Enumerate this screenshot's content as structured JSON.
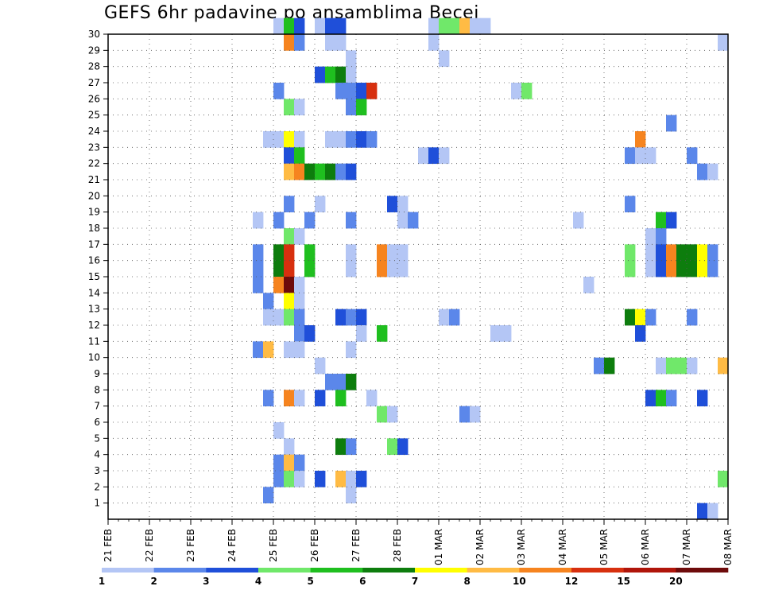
{
  "chart_data": {
    "type": "heatmap",
    "title": "GEFS 6hr padavine po ansamblima Becej",
    "xlabel": "",
    "ylabel": "",
    "x_axis": {
      "start_day_index": 0,
      "end_day_index": 15,
      "step": "6h",
      "tick_labels": [
        "21 FEB",
        "22 FEB",
        "23 FEB",
        "24 FEB",
        "25 FEB",
        "26 FEB",
        "27 FEB",
        "28 FEB",
        "01 MAR",
        "02 MAR",
        "03 MAR",
        "04 MAR",
        "05 MAR",
        "06 MAR",
        "07 MAR",
        "08 MAR"
      ]
    },
    "y_axis": {
      "ylim": [
        0,
        30
      ],
      "tick_labels": [
        "1",
        "2",
        "3",
        "4",
        "5",
        "6",
        "7",
        "8",
        "9",
        "10",
        "11",
        "12",
        "13",
        "14",
        "15",
        "16",
        "17",
        "18",
        "19",
        "20",
        "21",
        "22",
        "23",
        "24",
        "25",
        "26",
        "27",
        "28",
        "29",
        "30"
      ]
    },
    "colorbar": {
      "levels": [
        "1",
        "2",
        "3",
        "4",
        "5",
        "6",
        "7",
        "8",
        "10",
        "12",
        "15",
        "20"
      ],
      "colors": [
        "#b4c6f5",
        "#5b87ea",
        "#1f4fd9",
        "#70e86a",
        "#1fbf1f",
        "#0d7d0d",
        "#ffff00",
        "#ffbb44",
        "#f6841f",
        "#d7300f",
        "#b0150a",
        "#6e0b0b"
      ]
    },
    "grid": true,
    "cells": [
      [
        30,
        16,
        0
      ],
      [
        30,
        17,
        4
      ],
      [
        30,
        18,
        2
      ],
      [
        30,
        20,
        0
      ],
      [
        30,
        21,
        2
      ],
      [
        30,
        22,
        2
      ],
      [
        30,
        31,
        0
      ],
      [
        30,
        32,
        3
      ],
      [
        30,
        33,
        3
      ],
      [
        30,
        34,
        7
      ],
      [
        30,
        35,
        0
      ],
      [
        30,
        36,
        0
      ],
      [
        29,
        17,
        8
      ],
      [
        29,
        18,
        1
      ],
      [
        29,
        21,
        0
      ],
      [
        29,
        22,
        0
      ],
      [
        29,
        31,
        0
      ],
      [
        29,
        59,
        0
      ],
      [
        28,
        23,
        0
      ],
      [
        28,
        32,
        0
      ],
      [
        27,
        20,
        2
      ],
      [
        27,
        21,
        4
      ],
      [
        27,
        22,
        5
      ],
      [
        27,
        23,
        0
      ],
      [
        26,
        16,
        1
      ],
      [
        26,
        22,
        1
      ],
      [
        26,
        23,
        1
      ],
      [
        26,
        24,
        2
      ],
      [
        26,
        25,
        9
      ],
      [
        26,
        39,
        0
      ],
      [
        26,
        40,
        3
      ],
      [
        25,
        17,
        3
      ],
      [
        25,
        18,
        0
      ],
      [
        25,
        23,
        1
      ],
      [
        25,
        24,
        4
      ],
      [
        24,
        54,
        1
      ],
      [
        23,
        15,
        0
      ],
      [
        23,
        16,
        0
      ],
      [
        23,
        17,
        6
      ],
      [
        23,
        18,
        0
      ],
      [
        23,
        21,
        0
      ],
      [
        23,
        22,
        0
      ],
      [
        23,
        23,
        1
      ],
      [
        23,
        24,
        2
      ],
      [
        23,
        25,
        1
      ],
      [
        23,
        51,
        8
      ],
      [
        22,
        17,
        2
      ],
      [
        22,
        18,
        4
      ],
      [
        22,
        30,
        0
      ],
      [
        22,
        31,
        2
      ],
      [
        22,
        32,
        0
      ],
      [
        22,
        50,
        1
      ],
      [
        22,
        51,
        0
      ],
      [
        22,
        52,
        0
      ],
      [
        22,
        56,
        1
      ],
      [
        21,
        17,
        7
      ],
      [
        21,
        18,
        8
      ],
      [
        21,
        19,
        5
      ],
      [
        21,
        20,
        4
      ],
      [
        21,
        21,
        5
      ],
      [
        21,
        22,
        1
      ],
      [
        21,
        23,
        2
      ],
      [
        21,
        57,
        1
      ],
      [
        21,
        58,
        0
      ],
      [
        19,
        17,
        1
      ],
      [
        19,
        20,
        0
      ],
      [
        19,
        27,
        2
      ],
      [
        19,
        28,
        0
      ],
      [
        19,
        50,
        1
      ],
      [
        18,
        14,
        0
      ],
      [
        18,
        16,
        1
      ],
      [
        18,
        19,
        1
      ],
      [
        18,
        23,
        1
      ],
      [
        18,
        28,
        0
      ],
      [
        18,
        29,
        1
      ],
      [
        18,
        45,
        0
      ],
      [
        18,
        53,
        4
      ],
      [
        18,
        54,
        2
      ],
      [
        17,
        17,
        3
      ],
      [
        17,
        18,
        0
      ],
      [
        17,
        52,
        0
      ],
      [
        17,
        53,
        1
      ],
      [
        16,
        14,
        1
      ],
      [
        16,
        16,
        5
      ],
      [
        16,
        17,
        9
      ],
      [
        16,
        19,
        4
      ],
      [
        16,
        23,
        0
      ],
      [
        16,
        26,
        8
      ],
      [
        16,
        27,
        0
      ],
      [
        16,
        28,
        0
      ],
      [
        16,
        50,
        3
      ],
      [
        16,
        52,
        0
      ],
      [
        16,
        53,
        2
      ],
      [
        16,
        54,
        8
      ],
      [
        16,
        55,
        5
      ],
      [
        16,
        56,
        5
      ],
      [
        16,
        57,
        6
      ],
      [
        16,
        58,
        1
      ],
      [
        15,
        14,
        1
      ],
      [
        15,
        16,
        5
      ],
      [
        15,
        17,
        9
      ],
      [
        15,
        19,
        4
      ],
      [
        15,
        23,
        0
      ],
      [
        15,
        26,
        8
      ],
      [
        15,
        27,
        0
      ],
      [
        15,
        28,
        0
      ],
      [
        15,
        50,
        3
      ],
      [
        15,
        52,
        0
      ],
      [
        15,
        53,
        2
      ],
      [
        15,
        54,
        8
      ],
      [
        15,
        55,
        5
      ],
      [
        15,
        56,
        5
      ],
      [
        15,
        57,
        6
      ],
      [
        15,
        58,
        1
      ],
      [
        14,
        14,
        1
      ],
      [
        14,
        16,
        8
      ],
      [
        14,
        17,
        11
      ],
      [
        14,
        18,
        0
      ],
      [
        14,
        46,
        0
      ],
      [
        13,
        15,
        1
      ],
      [
        13,
        17,
        6
      ],
      [
        13,
        18,
        0
      ],
      [
        12,
        15,
        0
      ],
      [
        12,
        16,
        0
      ],
      [
        12,
        17,
        3
      ],
      [
        12,
        18,
        1
      ],
      [
        12,
        22,
        2
      ],
      [
        12,
        23,
        1
      ],
      [
        12,
        24,
        2
      ],
      [
        12,
        32,
        0
      ],
      [
        12,
        33,
        1
      ],
      [
        12,
        50,
        5
      ],
      [
        12,
        51,
        6
      ],
      [
        12,
        52,
        1
      ],
      [
        12,
        56,
        1
      ],
      [
        11,
        18,
        1
      ],
      [
        11,
        19,
        2
      ],
      [
        11,
        24,
        0
      ],
      [
        11,
        26,
        4
      ],
      [
        11,
        37,
        0
      ],
      [
        11,
        38,
        0
      ],
      [
        11,
        51,
        2
      ],
      [
        10,
        14,
        1
      ],
      [
        10,
        15,
        7
      ],
      [
        10,
        17,
        0
      ],
      [
        10,
        18,
        0
      ],
      [
        10,
        23,
        0
      ],
      [
        9,
        20,
        0
      ],
      [
        9,
        47,
        1
      ],
      [
        9,
        48,
        5
      ],
      [
        9,
        53,
        0
      ],
      [
        9,
        54,
        3
      ],
      [
        9,
        55,
        3
      ],
      [
        9,
        56,
        0
      ],
      [
        9,
        59,
        7
      ],
      [
        8,
        21,
        1
      ],
      [
        8,
        22,
        1
      ],
      [
        8,
        23,
        5
      ],
      [
        7,
        15,
        1
      ],
      [
        7,
        17,
        8
      ],
      [
        7,
        18,
        0
      ],
      [
        7,
        20,
        2
      ],
      [
        7,
        22,
        4
      ],
      [
        7,
        25,
        0
      ],
      [
        7,
        52,
        2
      ],
      [
        7,
        53,
        4
      ],
      [
        7,
        54,
        1
      ],
      [
        7,
        57,
        2
      ],
      [
        6,
        26,
        3
      ],
      [
        6,
        27,
        0
      ],
      [
        6,
        34,
        1
      ],
      [
        6,
        35,
        0
      ],
      [
        5,
        16,
        0
      ],
      [
        4,
        17,
        0
      ],
      [
        4,
        22,
        5
      ],
      [
        4,
        23,
        1
      ],
      [
        4,
        27,
        3
      ],
      [
        4,
        28,
        2
      ],
      [
        3,
        16,
        1
      ],
      [
        3,
        17,
        7
      ],
      [
        3,
        18,
        1
      ],
      [
        2,
        16,
        1
      ],
      [
        2,
        17,
        3
      ],
      [
        2,
        18,
        0
      ],
      [
        2,
        20,
        2
      ],
      [
        2,
        22,
        7
      ],
      [
        2,
        23,
        0
      ],
      [
        2,
        24,
        2
      ],
      [
        2,
        59,
        3
      ],
      [
        1,
        15,
        1
      ],
      [
        1,
        23,
        0
      ],
      [
        0,
        57,
        2
      ],
      [
        0,
        58,
        0
      ]
    ]
  }
}
